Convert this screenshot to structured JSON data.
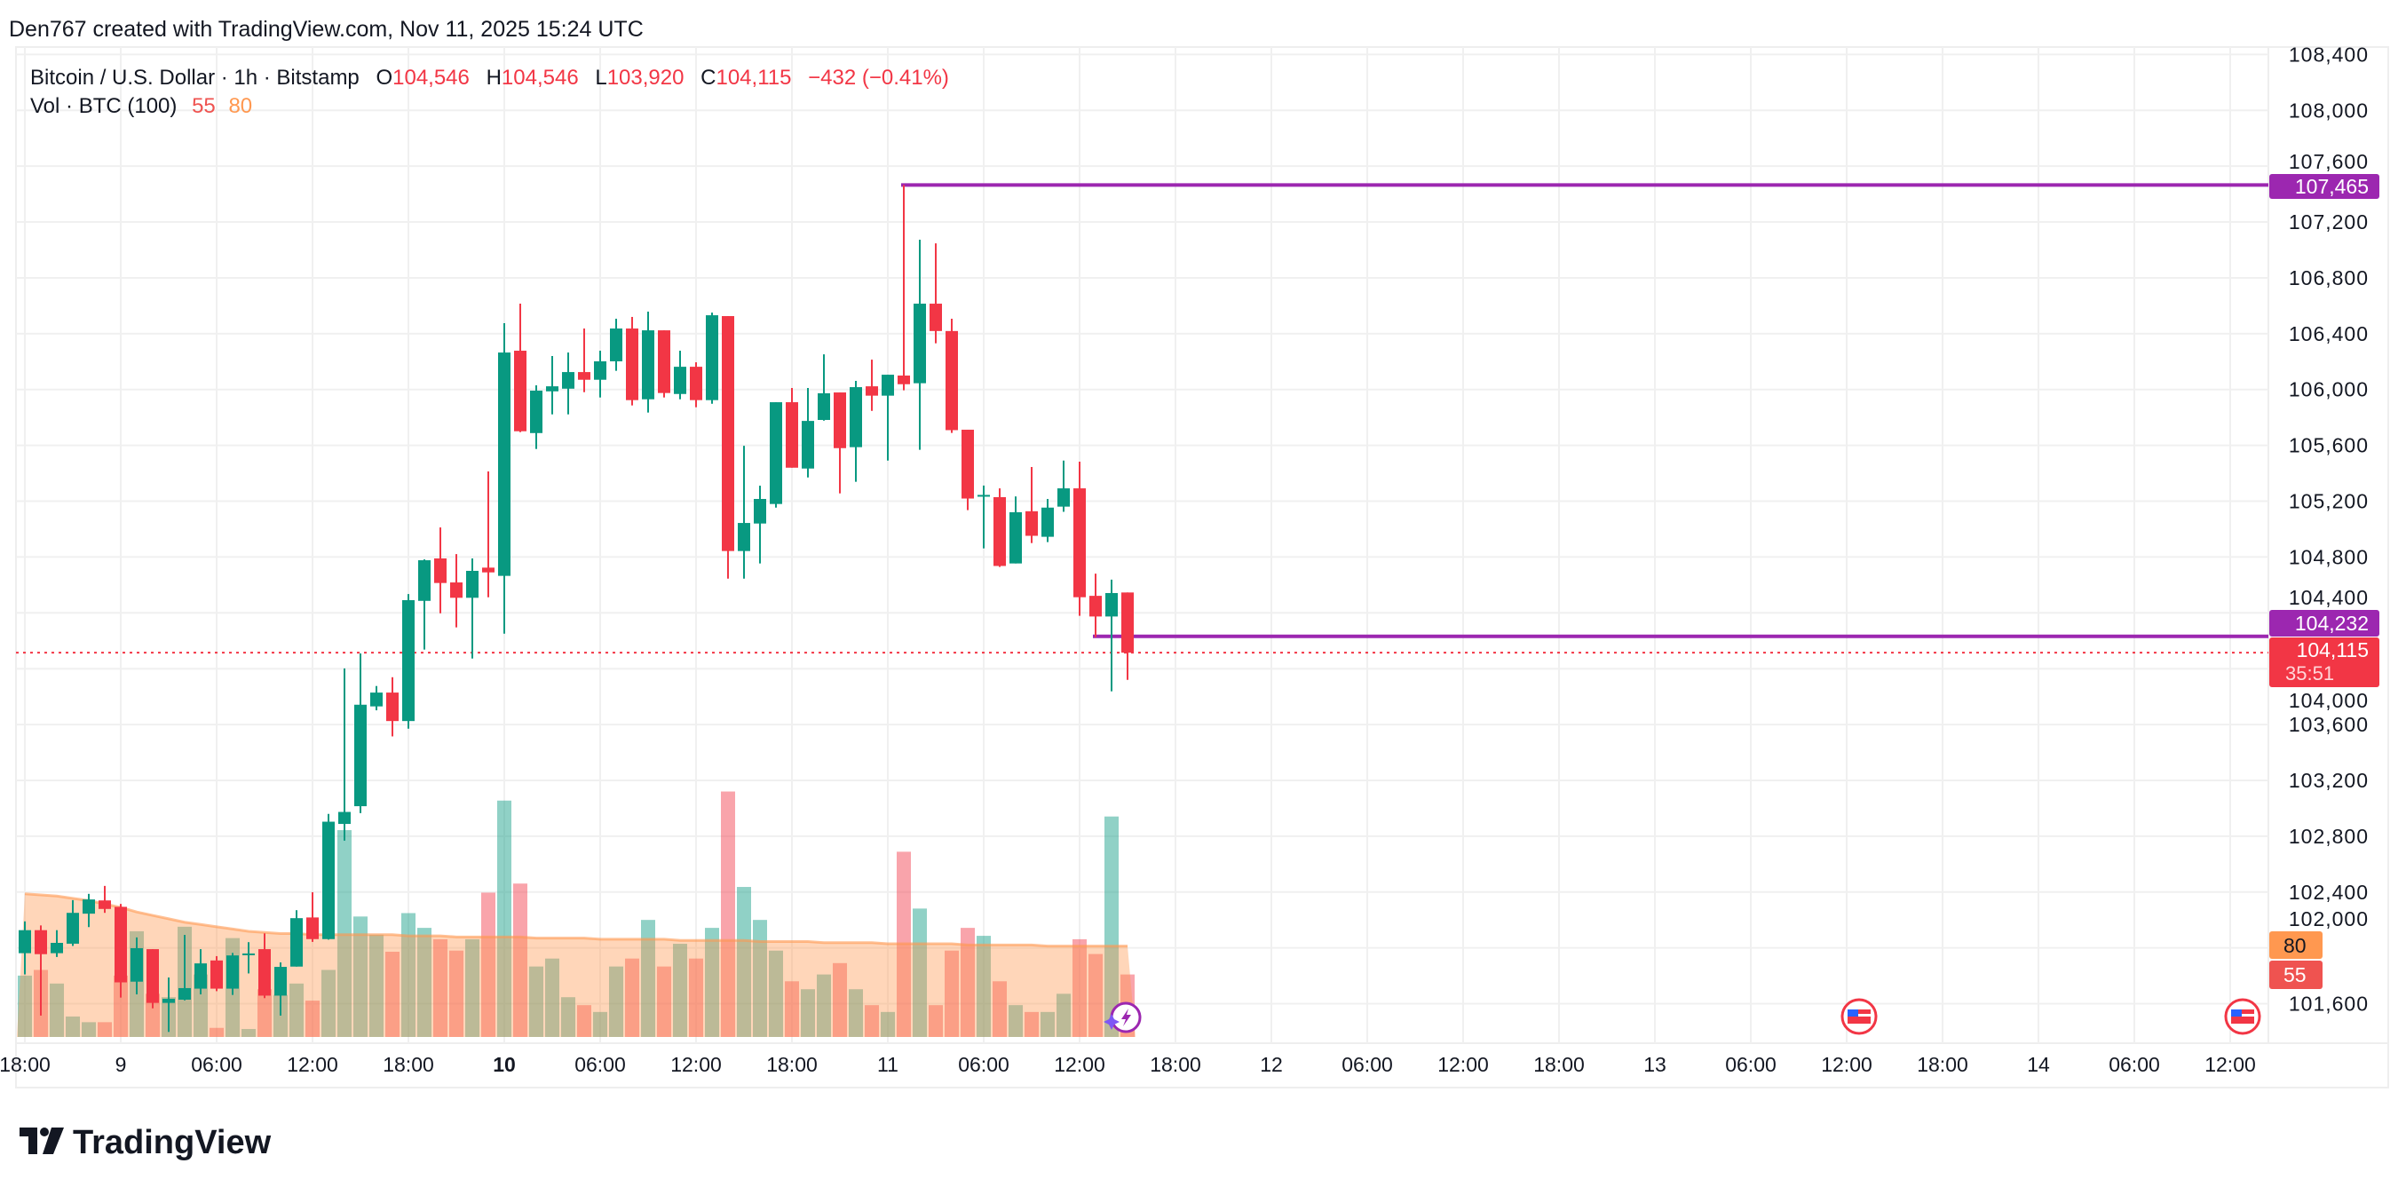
{
  "header": {
    "attribution": "Den767 created with TradingView.com, Nov 11, 2025 15:24 UTC"
  },
  "legend": {
    "symbol": "Bitcoin / U.S. Dollar · 1h · Bitstamp",
    "o_label": "O",
    "o_value": "104,546",
    "h_label": "H",
    "h_value": "104,546",
    "l_label": "L",
    "l_value": "103,920",
    "c_label": "C",
    "c_value": "104,115",
    "change": "−432 (−0.41%)",
    "vol_label": "Vol · BTC (100)",
    "vol_value": "55",
    "vol_ma_value": "80"
  },
  "colors": {
    "up": "#089981",
    "down": "#F23645",
    "purple": "#9C27B0",
    "vol_ma": "#FF9850",
    "vol_down_tag": "#EF5350",
    "grid": "#F0F0F0",
    "text": "#131722"
  },
  "price_axis": {
    "labels": [
      "108,400",
      "108,000",
      "107,600",
      "107,200",
      "106,800",
      "106,400",
      "106,000",
      "105,600",
      "105,200",
      "104,800",
      "104,400",
      "104,000",
      "103,600",
      "103,200",
      "102,800",
      "102,400",
      "102,000",
      "101,600"
    ],
    "values": [
      108400,
      108000,
      107600,
      107200,
      106800,
      106400,
      106000,
      105600,
      105200,
      104800,
      104400,
      104000,
      103600,
      103200,
      102800,
      102400,
      102000,
      101600
    ]
  },
  "price_tags": {
    "upper_level": "107,465",
    "lower_level": "104,232",
    "last_price": "104,115",
    "countdown": "35:51",
    "vol_ma": "80",
    "vol": "55"
  },
  "levels": {
    "upper": 107465,
    "lower": 104232,
    "last": 104115
  },
  "time_axis": [
    {
      "label": "18:00",
      "h": -6,
      "bold": false
    },
    {
      "label": "9",
      "h": 0,
      "bold": false
    },
    {
      "label": "06:00",
      "h": 6
    },
    {
      "label": "12:00",
      "h": 12
    },
    {
      "label": "18:00",
      "h": 18
    },
    {
      "label": "10",
      "h": 24,
      "bold": true
    },
    {
      "label": "06:00",
      "h": 30
    },
    {
      "label": "12:00",
      "h": 36
    },
    {
      "label": "18:00",
      "h": 42
    },
    {
      "label": "11",
      "h": 48
    },
    {
      "label": "06:00",
      "h": 54
    },
    {
      "label": "12:00",
      "h": 60
    },
    {
      "label": "18:00",
      "h": 66
    },
    {
      "label": "12",
      "h": 72
    },
    {
      "label": "06:00",
      "h": 78
    },
    {
      "label": "12:00",
      "h": 84
    },
    {
      "label": "18:00",
      "h": 90
    },
    {
      "label": "13",
      "h": 96
    },
    {
      "label": "06:00",
      "h": 102
    },
    {
      "label": "12:00",
      "h": 108
    },
    {
      "label": "18:00",
      "h": 114
    },
    {
      "label": "14",
      "h": 120
    },
    {
      "label": "06:00",
      "h": 126
    },
    {
      "label": "12:00",
      "h": 132
    }
  ],
  "chart_data": {
    "type": "candlestick",
    "title": "Bitcoin / U.S. Dollar · 1h · Bitstamp",
    "ylim": [
      101400,
      108600
    ],
    "fields": [
      "open",
      "high",
      "low",
      "close",
      "volume"
    ],
    "candles": [
      [
        101962,
        102190,
        101810,
        102127,
        54
      ],
      [
        102127,
        102161,
        101515,
        101955,
        59
      ],
      [
        101962,
        102127,
        101935,
        102036,
        47
      ],
      [
        102030,
        102342,
        102014,
        102251,
        18
      ],
      [
        102245,
        102387,
        102149,
        102347,
        13
      ],
      [
        102340,
        102444,
        102251,
        102279,
        13
      ],
      [
        102294,
        102315,
        101644,
        101753,
        54
      ],
      [
        101758,
        102075,
        101667,
        101998,
        93
      ],
      [
        101991,
        101991,
        101567,
        101606,
        38
      ],
      [
        101606,
        101788,
        101398,
        101635,
        35
      ],
      [
        101629,
        102093,
        101624,
        101712,
        97
      ],
      [
        101708,
        101991,
        101667,
        101889,
        55
      ],
      [
        101910,
        101941,
        101690,
        101708,
        8
      ],
      [
        101708,
        101964,
        101663,
        101946,
        87
      ],
      [
        101955,
        102041,
        101817,
        101960,
        7
      ],
      [
        101991,
        102104,
        101640,
        101658,
        42
      ],
      [
        101658,
        101896,
        101515,
        101864,
        37
      ],
      [
        101866,
        102270,
        101866,
        102213,
        47
      ],
      [
        102218,
        102399,
        102043,
        102063,
        32
      ],
      [
        102063,
        102960,
        102059,
        102904,
        59
      ],
      [
        102888,
        104002,
        102768,
        102974,
        182
      ],
      [
        103015,
        104109,
        102965,
        103742,
        106
      ],
      [
        103730,
        103876,
        103702,
        103829,
        90
      ],
      [
        103829,
        103939,
        103515,
        103625,
        75
      ],
      [
        103625,
        104535,
        103570,
        104491,
        109
      ],
      [
        104486,
        104783,
        104137,
        104777,
        96
      ],
      [
        104790,
        105012,
        104397,
        104614,
        86
      ],
      [
        104618,
        104821,
        104296,
        104508,
        76
      ],
      [
        104508,
        104790,
        104073,
        104701,
        86
      ],
      [
        104724,
        105413,
        104512,
        104690,
        127
      ],
      [
        104665,
        106475,
        104251,
        106265,
        208
      ],
      [
        106278,
        106615,
        105695,
        105701,
        135
      ],
      [
        105688,
        106030,
        105574,
        105992,
        62
      ],
      [
        105987,
        106240,
        105822,
        106023,
        69
      ],
      [
        106006,
        106265,
        105822,
        106125,
        35
      ],
      [
        106125,
        106437,
        105981,
        106070,
        28
      ],
      [
        106070,
        106278,
        105943,
        106202,
        22
      ],
      [
        106202,
        106507,
        106134,
        106437,
        62
      ],
      [
        106437,
        106520,
        105886,
        105924,
        69
      ],
      [
        105930,
        106558,
        105835,
        106424,
        103
      ],
      [
        106424,
        106424,
        105943,
        105975,
        62
      ],
      [
        105968,
        106278,
        105930,
        106163,
        82
      ],
      [
        106163,
        106195,
        105873,
        105924,
        69
      ],
      [
        105924,
        106551,
        105898,
        106532,
        96
      ],
      [
        106526,
        106526,
        104645,
        104843,
        216
      ],
      [
        104843,
        105597,
        104645,
        105044,
        132
      ],
      [
        105040,
        105311,
        104754,
        105216,
        103
      ],
      [
        105180,
        105909,
        105154,
        105909,
        76
      ],
      [
        105909,
        106011,
        105440,
        105440,
        49
      ],
      [
        105434,
        106011,
        105370,
        105775,
        42
      ],
      [
        105782,
        106252,
        105777,
        105973,
        55
      ],
      [
        105979,
        105979,
        105256,
        105580,
        65
      ],
      [
        105587,
        106062,
        105339,
        106017,
        42
      ],
      [
        106023,
        106214,
        105847,
        105956,
        28
      ],
      [
        105956,
        106106,
        105491,
        106106,
        22
      ],
      [
        106100,
        107465,
        105994,
        106038,
        163
      ],
      [
        106045,
        107073,
        105568,
        106615,
        113
      ],
      [
        106615,
        107047,
        106331,
        106419,
        28
      ],
      [
        106419,
        106507,
        105689,
        105709,
        76
      ],
      [
        105712,
        105712,
        105136,
        105219,
        96
      ],
      [
        105240,
        105312,
        104862,
        105245,
        89
      ],
      [
        105229,
        105292,
        104729,
        104736,
        49
      ],
      [
        104754,
        105234,
        104754,
        105121,
        28
      ],
      [
        105128,
        105445,
        104900,
        104952,
        22
      ],
      [
        104945,
        105216,
        104907,
        105154,
        22
      ],
      [
        105161,
        105491,
        105124,
        105292,
        38
      ],
      [
        105292,
        105483,
        104379,
        104512,
        86
      ],
      [
        104522,
        104681,
        104226,
        104374,
        73
      ],
      [
        104374,
        104638,
        103838,
        104542,
        194
      ],
      [
        104546,
        104546,
        103920,
        104115,
        55
      ]
    ],
    "vol_ma": [
      126,
      125,
      124,
      122,
      120,
      117,
      114,
      110,
      107,
      104,
      101,
      99,
      97,
      95,
      93,
      92,
      91,
      91,
      90,
      90,
      90,
      90,
      90,
      90,
      89,
      89,
      89,
      88,
      88,
      88,
      88,
      88,
      87,
      87,
      87,
      87,
      86,
      86,
      86,
      86,
      86,
      85,
      85,
      85,
      85,
      85,
      84,
      84,
      84,
      84,
      83,
      83,
      83,
      83,
      82,
      82,
      82,
      82,
      82,
      81,
      81,
      81,
      81,
      81,
      80,
      80,
      80,
      80,
      80,
      80
    ]
  },
  "events": [
    {
      "icon": "lightning-event-icon"
    },
    {
      "icon": "us-flag-event-icon"
    },
    {
      "icon": "us-flag-event-icon"
    }
  ],
  "footer": {
    "logo_text": "TradingView"
  }
}
